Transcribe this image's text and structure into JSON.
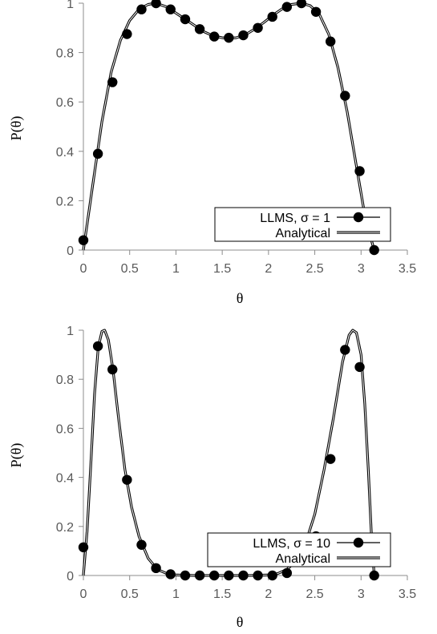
{
  "chart_data": [
    {
      "type": "line",
      "xlabel": "θ",
      "ylabel": "P(θ)",
      "xlim": [
        0,
        3.5
      ],
      "ylim": [
        0,
        1
      ],
      "xticks": [
        0,
        0.5,
        1,
        1.5,
        2,
        2.5,
        3,
        3.5
      ],
      "xtick_labels": [
        "0",
        "0.5",
        "1",
        "1.5",
        "2",
        "2.5",
        "3",
        "3.5"
      ],
      "yticks": [
        0,
        0.2,
        0.4,
        0.6,
        0.8,
        1
      ],
      "ytick_labels": [
        "0",
        "0.2",
        "0.4",
        "0.6",
        "0.8",
        "1"
      ],
      "grid": false,
      "legend_position": "bottom-right",
      "series": [
        {
          "name": "LLMS, σ = 1",
          "style": "markers",
          "color": "#000000",
          "x": [
            0.0,
            0.157,
            0.314,
            0.471,
            0.628,
            0.785,
            0.942,
            1.1,
            1.257,
            1.414,
            1.571,
            1.728,
            1.885,
            2.042,
            2.199,
            2.356,
            2.513,
            2.67,
            2.827,
            2.985,
            3.142
          ],
          "y": [
            0.04,
            0.39,
            0.68,
            0.875,
            0.975,
            1.0,
            0.975,
            0.935,
            0.895,
            0.865,
            0.86,
            0.87,
            0.9,
            0.945,
            0.985,
            1.0,
            0.965,
            0.845,
            0.625,
            0.32,
            0.0
          ]
        },
        {
          "name": "Analytical",
          "style": "line",
          "color": "#000000",
          "x": [
            0.0,
            0.1,
            0.2,
            0.3,
            0.4,
            0.5,
            0.6,
            0.7,
            0.785,
            0.9,
            1.0,
            1.1,
            1.2,
            1.3,
            1.4,
            1.5,
            1.571,
            1.65,
            1.75,
            1.85,
            1.95,
            2.05,
            2.15,
            2.25,
            2.356,
            2.45,
            2.55,
            2.65,
            2.75,
            2.85,
            2.95,
            3.05,
            3.142
          ],
          "y": [
            0.0,
            0.26,
            0.52,
            0.72,
            0.85,
            0.93,
            0.975,
            0.995,
            1.0,
            0.985,
            0.96,
            0.935,
            0.91,
            0.885,
            0.868,
            0.86,
            0.858,
            0.86,
            0.872,
            0.895,
            0.922,
            0.952,
            0.978,
            0.995,
            1.0,
            0.99,
            0.955,
            0.875,
            0.74,
            0.56,
            0.34,
            0.12,
            0.0
          ]
        }
      ]
    },
    {
      "type": "line",
      "xlabel": "θ",
      "ylabel": "P(θ)",
      "xlim": [
        0,
        3.5
      ],
      "ylim": [
        0,
        1
      ],
      "xticks": [
        0,
        0.5,
        1,
        1.5,
        2,
        2.5,
        3,
        3.5
      ],
      "xtick_labels": [
        "0",
        "0.5",
        "1",
        "1.5",
        "2",
        "2.5",
        "3",
        "3.5"
      ],
      "yticks": [
        0,
        0.2,
        0.4,
        0.6,
        0.8,
        1
      ],
      "ytick_labels": [
        "0",
        "0.2",
        "0.4",
        "0.6",
        "0.8",
        "1"
      ],
      "grid": false,
      "legend_position": "bottom-right",
      "series": [
        {
          "name": "LLMS, σ = 10",
          "style": "markers",
          "color": "#000000",
          "x": [
            0.0,
            0.157,
            0.314,
            0.471,
            0.628,
            0.785,
            0.942,
            1.1,
            1.257,
            1.414,
            1.571,
            1.728,
            1.885,
            2.042,
            2.199,
            2.356,
            2.513,
            2.67,
            2.827,
            2.985,
            3.142
          ],
          "y": [
            0.115,
            0.935,
            0.84,
            0.39,
            0.125,
            0.03,
            0.005,
            0.0,
            0.0,
            0.0,
            0.0,
            0.0,
            0.0,
            0.0,
            0.01,
            0.06,
            0.16,
            0.475,
            0.92,
            0.85,
            0.0
          ]
        },
        {
          "name": "Analytical",
          "style": "line",
          "color": "#000000",
          "x": [
            0.0,
            0.04,
            0.08,
            0.12,
            0.16,
            0.2,
            0.23,
            0.27,
            0.32,
            0.38,
            0.45,
            0.52,
            0.6,
            0.7,
            0.8,
            0.9,
            1.0,
            1.2,
            1.5,
            1.8,
            2.0,
            2.1,
            2.2,
            2.3,
            2.4,
            2.5,
            2.6,
            2.7,
            2.8,
            2.87,
            2.91,
            2.95,
            3.0,
            3.04,
            3.08,
            3.11,
            3.142
          ],
          "y": [
            0.0,
            0.18,
            0.45,
            0.74,
            0.93,
            0.995,
            1.0,
            0.96,
            0.84,
            0.64,
            0.43,
            0.28,
            0.16,
            0.07,
            0.025,
            0.008,
            0.002,
            0.0,
            0.0,
            0.0,
            0.002,
            0.008,
            0.025,
            0.06,
            0.13,
            0.25,
            0.43,
            0.64,
            0.87,
            0.98,
            1.0,
            0.99,
            0.9,
            0.7,
            0.42,
            0.18,
            0.0
          ]
        }
      ]
    }
  ]
}
